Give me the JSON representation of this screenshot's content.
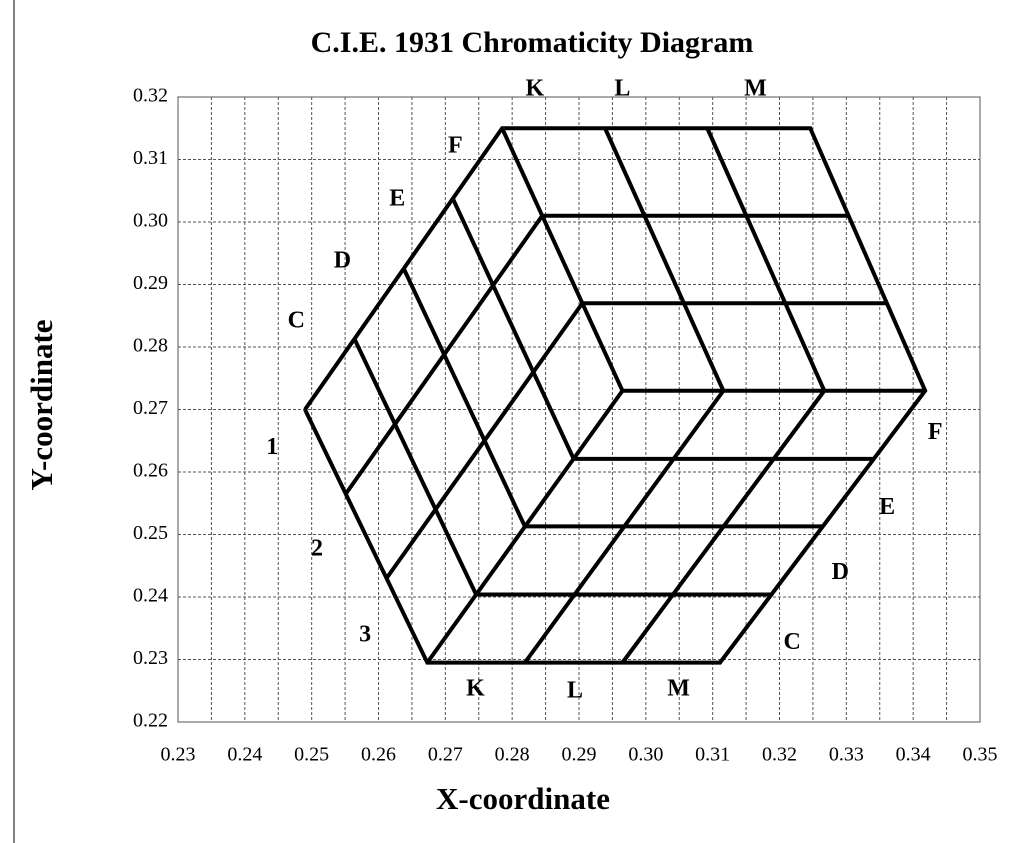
{
  "chart_data": {
    "type": "line",
    "title": "C.I.E. 1931 Chromaticity Diagram",
    "x_label": "X-coordinate",
    "y_label": "Y-coordinate",
    "xlim": [
      0.23,
      0.35
    ],
    "ylim": [
      0.22,
      0.32
    ],
    "xticks": [
      0.23,
      0.24,
      0.25,
      0.26,
      0.27,
      0.28,
      0.29,
      {
        "value": 0.3,
        "label": "0.30"
      },
      0.31,
      0.32,
      0.33,
      0.34,
      0.35
    ],
    "yticks": [
      0.22,
      0.23,
      0.24,
      0.25,
      0.26,
      0.27,
      0.28,
      0.29,
      {
        "value": 0.3,
        "label": "0.30"
      },
      0.31,
      0.32
    ],
    "x_minor_grid": [
      0.235,
      0.245,
      0.255,
      0.265,
      0.275,
      0.285,
      0.295,
      0.305,
      0.315,
      0.325,
      0.335,
      0.345
    ],
    "grid": true,
    "color": "#000000",
    "segments": [
      {
        "x": [
          0.249,
          0.2785,
          0.3246,
          0.3418,
          0.3111,
          0.2673,
          0.249
        ],
        "y": [
          0.27,
          0.315,
          0.315,
          0.273,
          0.2295,
          0.2295,
          0.27
        ]
      },
      {
        "x": [
          0.2785,
          0.2965
        ],
        "y": [
          0.315,
          0.273
        ]
      },
      {
        "x": [
          0.2965,
          0.3418
        ],
        "y": [
          0.273,
          0.273
        ]
      },
      {
        "x": [
          0.2965,
          0.2673
        ],
        "y": [
          0.273,
          0.2295
        ]
      },
      {
        "x": [
          0.2551,
          0.2845
        ],
        "y": [
          0.2565,
          0.301
        ]
      },
      {
        "x": [
          0.2612,
          0.2905
        ],
        "y": [
          0.243,
          0.287
        ]
      },
      {
        "x": [
          0.2564,
          0.2746
        ],
        "y": [
          0.2813,
          0.2404
        ]
      },
      {
        "x": [
          0.2638,
          0.2819
        ],
        "y": [
          0.2925,
          0.2513
        ]
      },
      {
        "x": [
          0.2711,
          0.2892
        ],
        "y": [
          0.3038,
          0.2621
        ]
      },
      {
        "x": [
          0.2939,
          0.3116
        ],
        "y": [
          0.315,
          0.273
        ]
      },
      {
        "x": [
          0.3092,
          0.3267
        ],
        "y": [
          0.315,
          0.273
        ]
      },
      {
        "x": [
          0.2845,
          0.3303
        ],
        "y": [
          0.301,
          0.301
        ]
      },
      {
        "x": [
          0.2905,
          0.3361
        ],
        "y": [
          0.287,
          0.287
        ]
      },
      {
        "x": [
          0.3116,
          0.2819
        ],
        "y": [
          0.273,
          0.2295
        ]
      },
      {
        "x": [
          0.3267,
          0.2965
        ],
        "y": [
          0.273,
          0.2295
        ]
      },
      {
        "x": [
          0.2892,
          0.3341
        ],
        "y": [
          0.2621,
          0.2621
        ]
      },
      {
        "x": [
          0.2819,
          0.3265
        ],
        "y": [
          0.2513,
          0.2513
        ]
      },
      {
        "x": [
          0.2746,
          0.3188
        ],
        "y": [
          0.2404,
          0.2404
        ]
      }
    ],
    "annotations": [
      {
        "text": "K",
        "x": 0.2834,
        "y": 0.3211
      },
      {
        "text": "L",
        "x": 0.2965,
        "y": 0.3211
      },
      {
        "text": "M",
        "x": 0.3164,
        "y": 0.3211
      },
      {
        "text": "F",
        "x": 0.2715,
        "y": 0.312
      },
      {
        "text": "E",
        "x": 0.2628,
        "y": 0.3035
      },
      {
        "text": "D",
        "x": 0.2546,
        "y": 0.2936
      },
      {
        "text": "C",
        "x": 0.2477,
        "y": 0.284
      },
      {
        "text": "1",
        "x": 0.2441,
        "y": 0.2638
      },
      {
        "text": "2",
        "x": 0.2508,
        "y": 0.2475
      },
      {
        "text": "3",
        "x": 0.258,
        "y": 0.2338
      },
      {
        "text": "K",
        "x": 0.2745,
        "y": 0.2251
      },
      {
        "text": "L",
        "x": 0.2894,
        "y": 0.2248
      },
      {
        "text": "M",
        "x": 0.3049,
        "y": 0.2251
      },
      {
        "text": "F",
        "x": 0.3433,
        "y": 0.2662
      },
      {
        "text": "E",
        "x": 0.3361,
        "y": 0.2542
      },
      {
        "text": "D",
        "x": 0.3291,
        "y": 0.2438
      },
      {
        "text": "C",
        "x": 0.3219,
        "y": 0.2326
      }
    ]
  }
}
